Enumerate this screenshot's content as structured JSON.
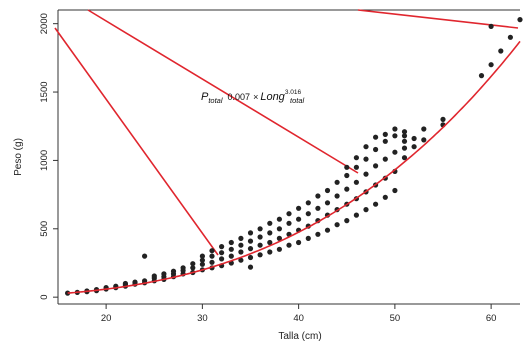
{
  "chart_data": {
    "type": "scatter",
    "title": "",
    "xlabel": "Talla (cm)",
    "ylabel": "Peso (g)",
    "xlim": [
      15,
      63
    ],
    "ylim": [
      -50,
      2100
    ],
    "x_ticks": [
      "20",
      "30",
      "40",
      "50",
      "60"
    ],
    "y_ticks": [
      "0",
      "500",
      "1000",
      "1500",
      "2000"
    ],
    "grid": false,
    "equation": {
      "lhs": "P",
      "lhs_sub": "total",
      "coef": "0.007",
      "op": "×",
      "rhs": "Long",
      "rhs_sub": "total",
      "exponent": "3.016"
    },
    "fit_curve": {
      "a": 0.007,
      "b": 3.016,
      "x_range": [
        16,
        63
      ],
      "color": "#e0262e"
    },
    "points_color": "#222222",
    "points": [
      [
        16,
        30
      ],
      [
        17,
        35
      ],
      [
        18,
        40
      ],
      [
        18,
        45
      ],
      [
        19,
        48
      ],
      [
        19,
        55
      ],
      [
        20,
        60
      ],
      [
        20,
        70
      ],
      [
        21,
        70
      ],
      [
        21,
        80
      ],
      [
        22,
        80
      ],
      [
        22,
        90
      ],
      [
        22,
        100
      ],
      [
        23,
        95
      ],
      [
        23,
        110
      ],
      [
        24,
        105
      ],
      [
        24,
        120
      ],
      [
        24,
        300
      ],
      [
        25,
        120
      ],
      [
        25,
        140
      ],
      [
        25,
        155
      ],
      [
        26,
        130
      ],
      [
        26,
        150
      ],
      [
        26,
        170
      ],
      [
        27,
        150
      ],
      [
        27,
        170
      ],
      [
        27,
        190
      ],
      [
        28,
        170
      ],
      [
        28,
        195
      ],
      [
        28,
        215
      ],
      [
        29,
        180
      ],
      [
        29,
        215
      ],
      [
        29,
        245
      ],
      [
        30,
        200
      ],
      [
        30,
        240
      ],
      [
        30,
        270
      ],
      [
        30,
        300
      ],
      [
        31,
        215
      ],
      [
        31,
        255
      ],
      [
        31,
        300
      ],
      [
        31,
        340
      ],
      [
        32,
        230
      ],
      [
        32,
        280
      ],
      [
        32,
        325
      ],
      [
        32,
        370
      ],
      [
        33,
        250
      ],
      [
        33,
        300
      ],
      [
        33,
        350
      ],
      [
        33,
        400
      ],
      [
        34,
        270
      ],
      [
        34,
        330
      ],
      [
        34,
        380
      ],
      [
        34,
        430
      ],
      [
        35,
        220
      ],
      [
        35,
        290
      ],
      [
        35,
        355
      ],
      [
        35,
        410
      ],
      [
        35,
        470
      ],
      [
        36,
        310
      ],
      [
        36,
        380
      ],
      [
        36,
        440
      ],
      [
        36,
        500
      ],
      [
        37,
        330
      ],
      [
        37,
        400
      ],
      [
        37,
        470
      ],
      [
        37,
        540
      ],
      [
        38,
        350
      ],
      [
        38,
        430
      ],
      [
        38,
        500
      ],
      [
        38,
        570
      ],
      [
        39,
        380
      ],
      [
        39,
        460
      ],
      [
        39,
        540
      ],
      [
        39,
        610
      ],
      [
        40,
        400
      ],
      [
        40,
        490
      ],
      [
        40,
        570
      ],
      [
        40,
        650
      ],
      [
        41,
        430
      ],
      [
        41,
        520
      ],
      [
        41,
        610
      ],
      [
        41,
        690
      ],
      [
        42,
        460
      ],
      [
        42,
        560
      ],
      [
        42,
        650
      ],
      [
        42,
        740
      ],
      [
        43,
        490
      ],
      [
        43,
        600
      ],
      [
        43,
        690
      ],
      [
        43,
        780
      ],
      [
        44,
        530
      ],
      [
        44,
        640
      ],
      [
        44,
        740
      ],
      [
        44,
        840
      ],
      [
        45,
        560
      ],
      [
        45,
        680
      ],
      [
        45,
        790
      ],
      [
        45,
        890
      ],
      [
        45,
        950
      ],
      [
        46,
        600
      ],
      [
        46,
        720
      ],
      [
        46,
        840
      ],
      [
        46,
        950
      ],
      [
        46,
        1020
      ],
      [
        47,
        640
      ],
      [
        47,
        770
      ],
      [
        47,
        900
      ],
      [
        47,
        1010
      ],
      [
        47,
        1100
      ],
      [
        48,
        680
      ],
      [
        48,
        820
      ],
      [
        48,
        960
      ],
      [
        48,
        1080
      ],
      [
        48,
        1170
      ],
      [
        49,
        730
      ],
      [
        49,
        870
      ],
      [
        49,
        1010
      ],
      [
        49,
        1140
      ],
      [
        49,
        1190
      ],
      [
        50,
        780
      ],
      [
        50,
        920
      ],
      [
        50,
        1060
      ],
      [
        50,
        1180
      ],
      [
        50,
        1230
      ],
      [
        51,
        1020
      ],
      [
        51,
        1090
      ],
      [
        51,
        1140
      ],
      [
        51,
        1210
      ],
      [
        51,
        1180
      ],
      [
        52,
        1100
      ],
      [
        52,
        1160
      ],
      [
        53,
        1150
      ],
      [
        53,
        1230
      ],
      [
        55,
        1260
      ],
      [
        55,
        1300
      ],
      [
        59,
        1620
      ],
      [
        60,
        1700
      ],
      [
        60,
        1980
      ],
      [
        61,
        1800
      ],
      [
        62,
        1900
      ],
      [
        63,
        2030
      ]
    ]
  }
}
